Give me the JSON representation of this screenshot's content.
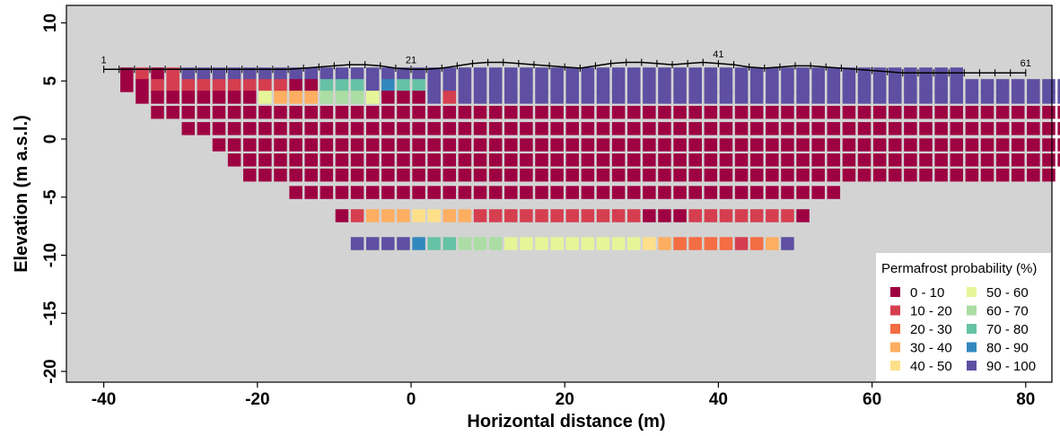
{
  "chart_data": {
    "type": "heatmap",
    "xlabel": "Horizontal distance (m)",
    "ylabel": "Elevation (m a.s.l.)",
    "xlim": [
      -42,
      82
    ],
    "ylim": [
      -21,
      11
    ],
    "x_ticks": [
      -40,
      -20,
      0,
      20,
      40,
      60,
      80
    ],
    "y_ticks": [
      10,
      5,
      0,
      -5,
      -10,
      -15,
      -20
    ],
    "x_tick_labels": [
      "-40",
      "-20",
      "0",
      "20",
      "40",
      "60",
      "80"
    ],
    "y_tick_labels": [
      "10",
      "5",
      "0",
      "-5",
      "-10",
      "-15",
      "-20"
    ],
    "grid": false,
    "background_color": "#d3d3d3",
    "legend": {
      "title": "Permafrost probability (%)",
      "placement": "bottom-right",
      "classes": [
        {
          "label": "0 - 10",
          "color": "#9e0142"
        },
        {
          "label": "10 - 20",
          "color": "#d53e4f"
        },
        {
          "label": "20 - 30",
          "color": "#f46d43"
        },
        {
          "label": "30 - 40",
          "color": "#fdae61"
        },
        {
          "label": "40 - 50",
          "color": "#fee08b"
        },
        {
          "label": "50 - 60",
          "color": "#e6f598"
        },
        {
          "label": "60 - 70",
          "color": "#abdda4"
        },
        {
          "label": "70 - 80",
          "color": "#66c2a5"
        },
        {
          "label": "80 - 90",
          "color": "#3288bd"
        },
        {
          "label": "90 - 100",
          "color": "#5e4fa2"
        }
      ]
    },
    "electrodes": {
      "count": 61,
      "x_start": -40,
      "x_end": 80,
      "label_indices": [
        1,
        21,
        41,
        61
      ],
      "labels": [
        "1",
        "21",
        "41",
        "61"
      ],
      "surface_elevation": [
        6.0,
        6.0,
        6.0,
        6.0,
        6.0,
        6.0,
        6.0,
        6.0,
        6.0,
        6.0,
        6.0,
        6.0,
        6.0,
        6.1,
        6.2,
        6.3,
        6.4,
        6.4,
        6.3,
        6.1,
        6.0,
        6.0,
        6.1,
        6.3,
        6.5,
        6.6,
        6.6,
        6.5,
        6.4,
        6.3,
        6.2,
        6.1,
        6.3,
        6.5,
        6.6,
        6.6,
        6.5,
        6.4,
        6.5,
        6.6,
        6.5,
        6.4,
        6.2,
        6.1,
        6.2,
        6.3,
        6.3,
        6.2,
        6.1,
        6.0,
        5.9,
        5.8,
        5.7,
        5.7,
        5.7,
        5.7,
        5.7,
        5.7,
        5.7,
        5.7,
        5.7
      ]
    },
    "cell_width_m": 2,
    "layers": [
      {
        "elevation": 5.6,
        "x_start": -37,
        "codes": "0101999999999999999999999999999999999999999999999999999"
      },
      {
        "elevation": 4.6,
        "x_start": -37,
        "codes": "0011111111100777987799999999999999999999999999999999999999999999"
      },
      {
        "elevation": 3.6,
        "x_start": -35,
        "codes": "000000005333666500091999999999999999999999999999999999999999999999999999999999999911111"
      },
      {
        "elevation": 2.3,
        "x_start": -33,
        "codes": "000000000000000000000000000000000000000000000000000000000000000000000000000000000001111113"
      },
      {
        "elevation": 0.9,
        "x_start": -29,
        "codes": "000000000000000000000000000000000000000000000000000000000000000000000000000000001111"
      },
      {
        "elevation": -0.5,
        "x_start": -25,
        "codes": "0000000000000000000000000000000000000000000000000000000000000000000000000"
      },
      {
        "elevation": -1.8,
        "x_start": -23,
        "codes": "0000000000000000000000000000000000000000000000000000000000000000"
      },
      {
        "elevation": -3.1,
        "x_start": -21,
        "codes": "00000000000000000000000000000000000000000000000000000"
      },
      {
        "elevation": -4.6,
        "x_start": -15,
        "codes": "000000000000000000000000000000000000"
      },
      {
        "elevation": -6.6,
        "x_start": -9,
        "codes": "0133344331111111111100011111110"
      },
      {
        "elevation": -9.0,
        "x_start": -7,
        "codes": "99998776665555555554322221239"
      }
    ]
  }
}
